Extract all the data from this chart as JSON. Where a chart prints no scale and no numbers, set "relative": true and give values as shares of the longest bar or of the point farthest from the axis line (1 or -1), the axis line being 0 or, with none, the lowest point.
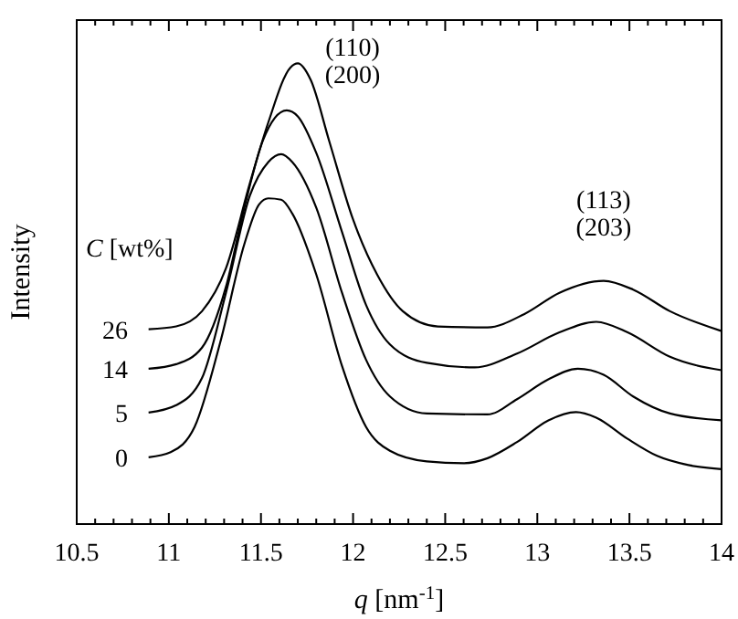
{
  "chart_data": {
    "type": "line",
    "relative": true,
    "xlabel": "q [nm$^{-1}$]",
    "ylabel": "Intensity",
    "legend_title": "C [wt%]",
    "xlim": [
      10.5,
      14
    ],
    "xticks": [
      10.5,
      {
        "value": 10.6,
        "label": null
      },
      {
        "value": 10.7,
        "label": null
      },
      {
        "value": 10.8,
        "label": null
      },
      {
        "value": 10.9,
        "label": null
      },
      11,
      {
        "value": 11.1,
        "label": null
      },
      {
        "value": 11.2,
        "label": null
      },
      {
        "value": 11.3,
        "label": null
      },
      {
        "value": 11.4,
        "label": null
      },
      11.5,
      {
        "value": 11.6,
        "label": null
      },
      {
        "value": 11.7,
        "label": null
      },
      {
        "value": 11.8,
        "label": null
      },
      {
        "value": 11.9,
        "label": null
      },
      12,
      {
        "value": 12.1,
        "label": null
      },
      {
        "value": 12.2,
        "label": null
      },
      {
        "value": 12.3,
        "label": null
      },
      {
        "value": 12.4,
        "label": null
      },
      12.5,
      {
        "value": 12.6,
        "label": null
      },
      {
        "value": 12.7,
        "label": null
      },
      {
        "value": 12.8,
        "label": null
      },
      {
        "value": 12.9,
        "label": null
      },
      13,
      {
        "value": 13.1,
        "label": null
      },
      {
        "value": 13.2,
        "label": null
      },
      {
        "value": 13.3,
        "label": null
      },
      {
        "value": 13.4,
        "label": null
      },
      13.5,
      {
        "value": 13.6,
        "label": null
      },
      {
        "value": 13.7,
        "label": null
      },
      {
        "value": 13.8,
        "label": null
      },
      {
        "value": 13.9,
        "label": null
      },
      14
    ],
    "marker": "none",
    "line_style": "solid",
    "series": [
      {
        "name": "0",
        "color": "#000000",
        "x": [
          10.89,
          11.01,
          11.14,
          11.28,
          11.41,
          11.49,
          11.54,
          11.61,
          11.67,
          11.8,
          11.94,
          12.07,
          12.2,
          12.4,
          12.6,
          12.73,
          12.89,
          13.06,
          13.21,
          13.32,
          13.49,
          13.65,
          13.82,
          14.0
        ],
        "values": [
          0.145,
          0.156,
          0.211,
          0.396,
          0.608,
          0.694,
          0.707,
          0.704,
          0.674,
          0.542,
          0.343,
          0.211,
          0.159,
          0.136,
          0.132,
          0.143,
          0.178,
          0.225,
          0.243,
          0.231,
          0.185,
          0.148,
          0.128,
          0.119
        ]
      },
      {
        "name": "5",
        "color": "#000000",
        "x": [
          10.89,
          11.04,
          11.18,
          11.31,
          11.44,
          11.54,
          11.61,
          11.67,
          11.8,
          11.94,
          12.07,
          12.2,
          12.4,
          12.73,
          12.89,
          13.06,
          13.22,
          13.36,
          13.52,
          13.72,
          14.0
        ],
        "values": [
          0.242,
          0.258,
          0.317,
          0.502,
          0.713,
          0.786,
          0.803,
          0.786,
          0.687,
          0.502,
          0.357,
          0.277,
          0.24,
          0.238,
          0.271,
          0.314,
          0.337,
          0.324,
          0.277,
          0.24,
          0.225
        ]
      },
      {
        "name": "14",
        "color": "#000000",
        "x": [
          10.89,
          11.04,
          11.18,
          11.31,
          11.41,
          11.51,
          11.64,
          11.7,
          11.8,
          11.94,
          12.07,
          12.2,
          12.4,
          12.66,
          12.89,
          13.12,
          13.32,
          13.49,
          13.72,
          14.0
        ],
        "values": [
          0.337,
          0.347,
          0.383,
          0.515,
          0.687,
          0.832,
          0.898,
          0.885,
          0.806,
          0.634,
          0.476,
          0.39,
          0.35,
          0.34,
          0.37,
          0.416,
          0.439,
          0.416,
          0.363,
          0.334
        ]
      },
      {
        "name": "26",
        "color": "#000000",
        "x": [
          10.89,
          11.04,
          11.18,
          11.31,
          11.44,
          11.54,
          11.66,
          11.7,
          11.77,
          11.87,
          12.0,
          12.13,
          12.27,
          12.46,
          12.73,
          12.93,
          13.12,
          13.36,
          13.52,
          13.72,
          14.0
        ],
        "values": [
          0.423,
          0.429,
          0.462,
          0.555,
          0.74,
          0.872,
          0.991,
          1,
          0.964,
          0.832,
          0.661,
          0.542,
          0.462,
          0.429,
          0.427,
          0.456,
          0.502,
          0.528,
          0.509,
          0.462,
          0.419
        ]
      }
    ],
    "annotations": [
      "(110)\n(200)",
      "(113)\n(203)"
    ]
  }
}
